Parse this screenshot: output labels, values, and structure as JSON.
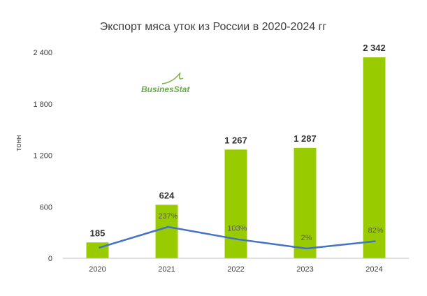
{
  "chart_data": {
    "type": "bar",
    "title": "Экспорт мяса уток из России в 2020-2024 гг",
    "ylabel": "тонн",
    "categories": [
      "2020",
      "2021",
      "2022",
      "2023",
      "2024"
    ],
    "series": [
      {
        "values": [
          185,
          624,
          1267,
          1287,
          2342
        ],
        "value_labels": [
          "185",
          "624",
          "1 267",
          "1 287",
          "2 342"
        ],
        "color": "#99cc00"
      },
      {
        "type": "line",
        "values": [
          null,
          237,
          103,
          2,
          82
        ],
        "point_labels": [
          "",
          "237%",
          "103%",
          "2%",
          "82%"
        ],
        "color": "#4472c4"
      }
    ],
    "yticks": [
      0,
      600,
      1200,
      1800,
      2400
    ],
    "ytick_labels": [
      "0",
      "600",
      "1 200",
      "1 800",
      "2 400"
    ],
    "ylim": [
      0,
      2400
    ],
    "grid": false,
    "watermark": "BusinesStat"
  }
}
